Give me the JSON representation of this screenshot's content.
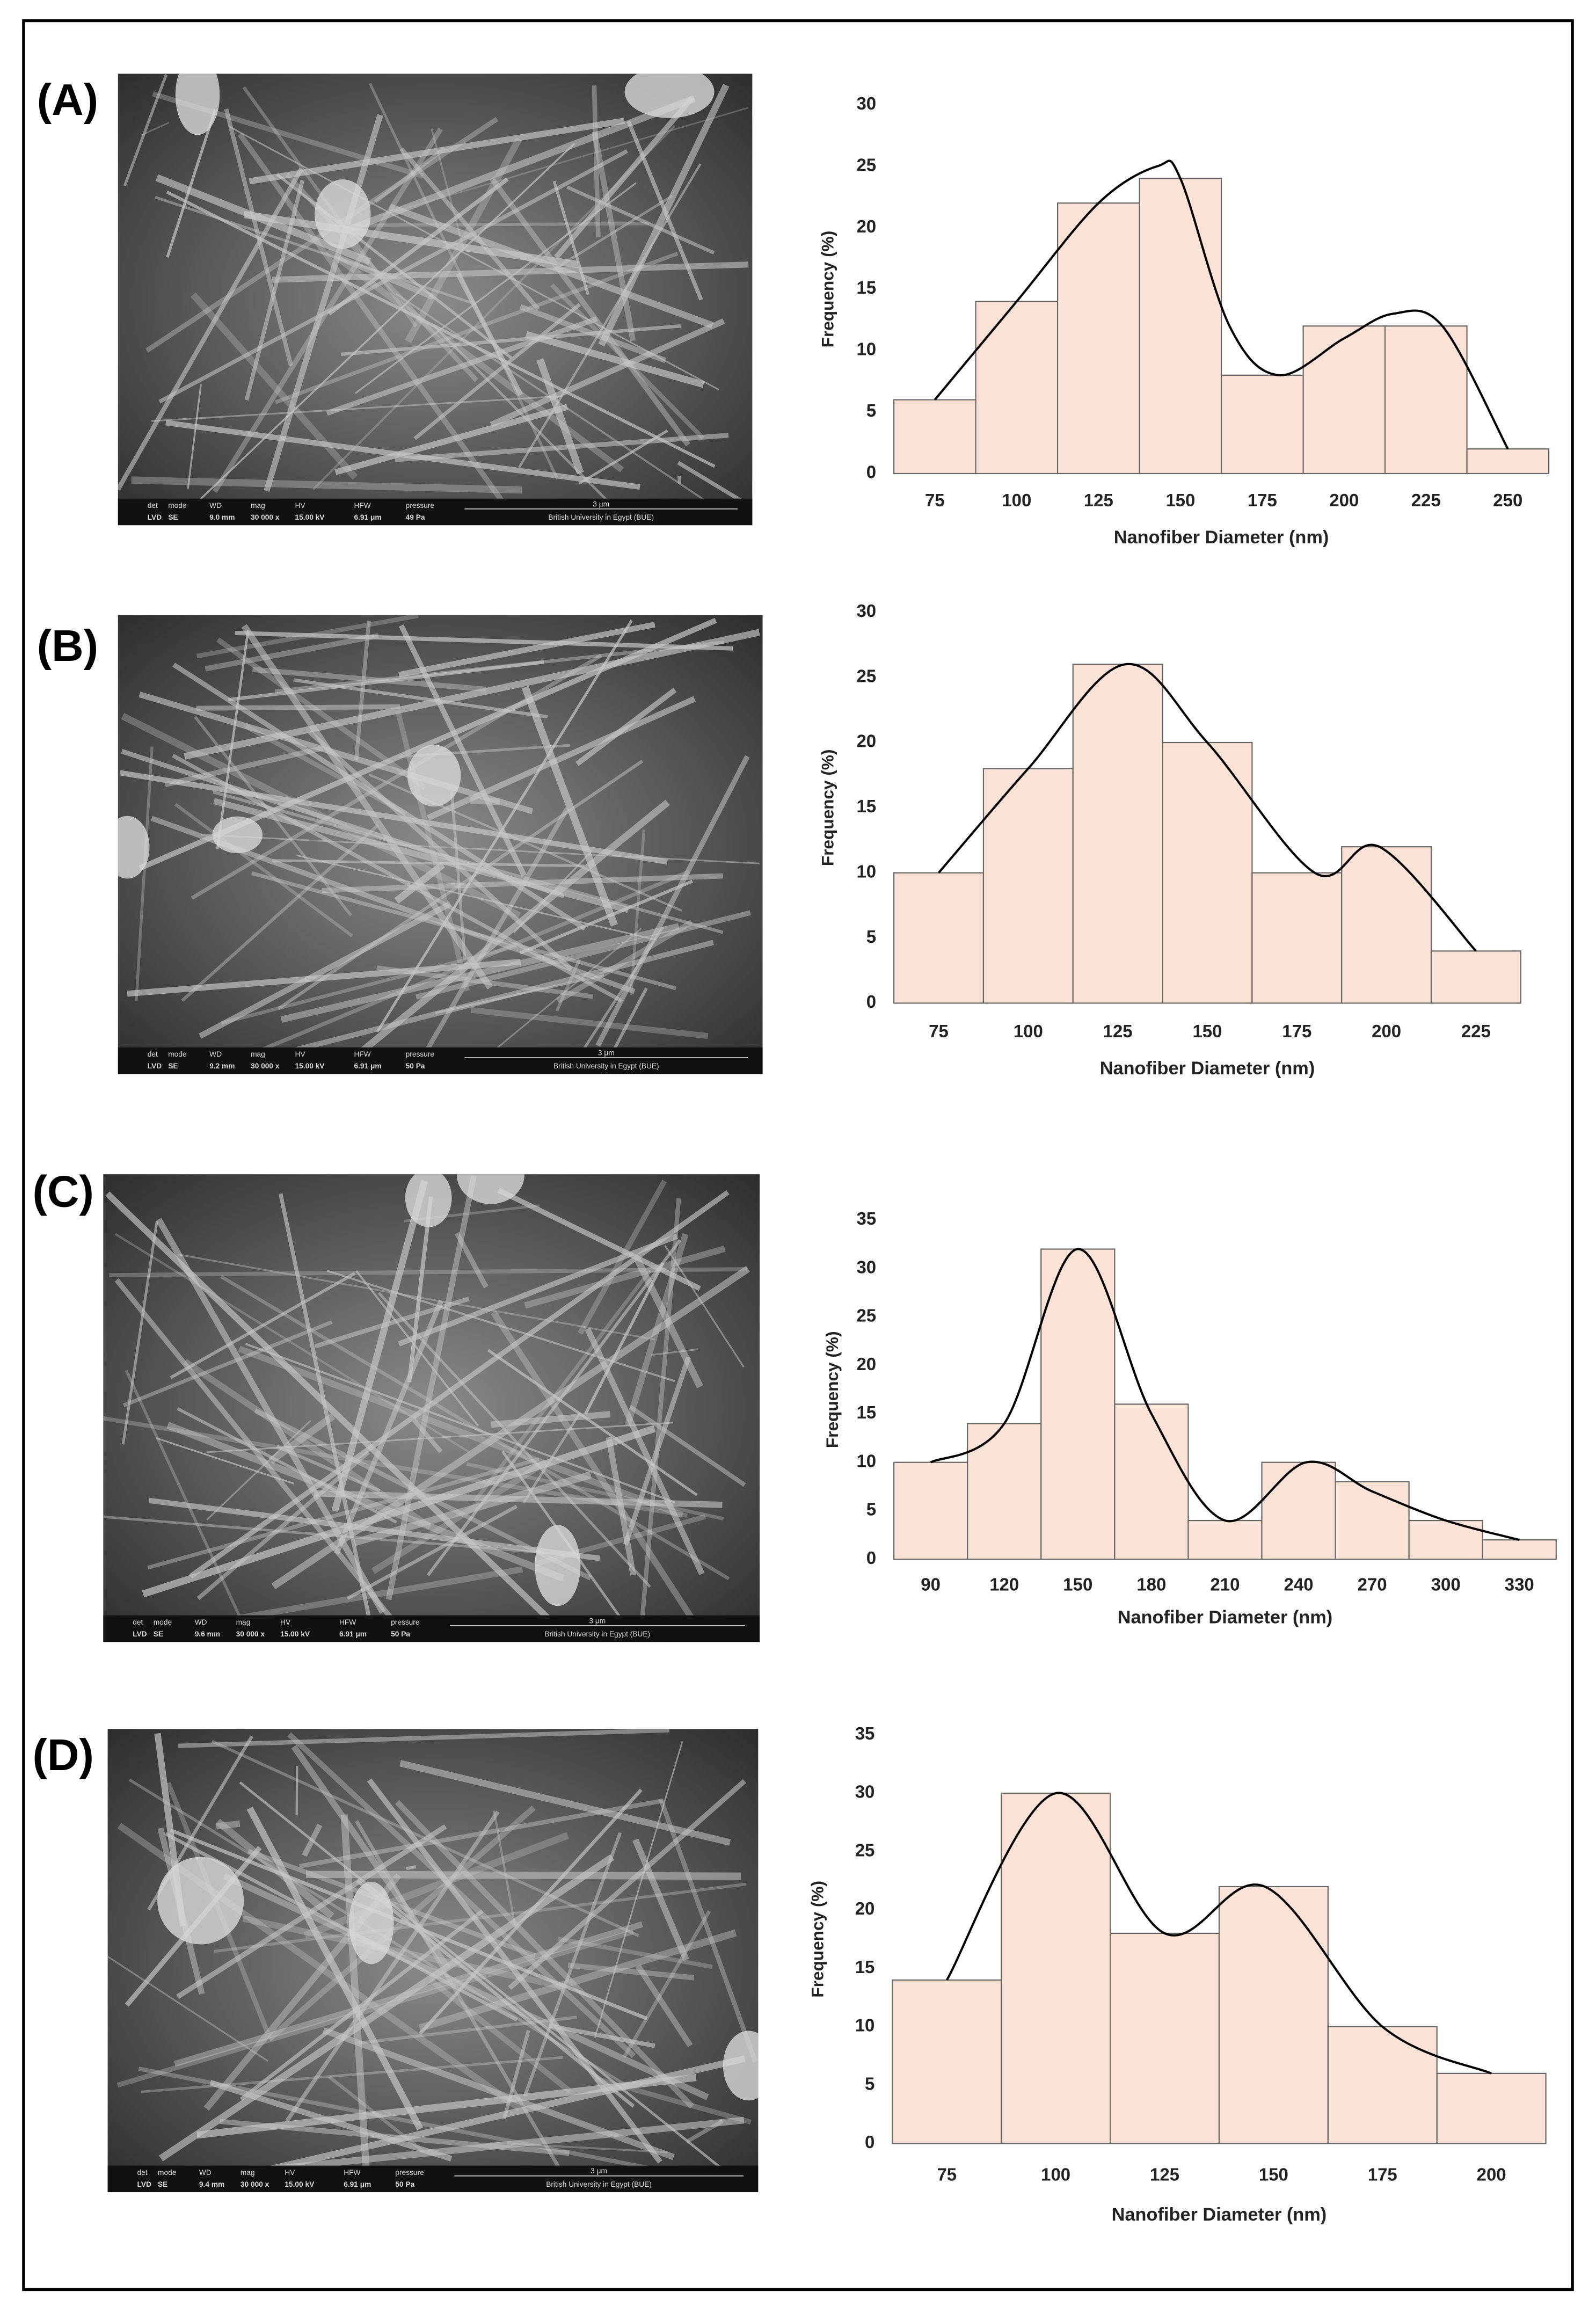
{
  "panels": [
    {
      "label": "(A)",
      "sem_bar": {
        "headers": [
          "det",
          "mode",
          "WD",
          "mag",
          "HV",
          "HFW",
          "pressure"
        ],
        "scale": "3 μm",
        "values": [
          "LVD",
          "SE",
          "9.0 mm",
          "30 000 x",
          "15.00 kV",
          "6.91 μm",
          "49 Pa"
        ],
        "institution": "British University in Egypt (BUE)"
      }
    },
    {
      "label": "(B)",
      "sem_bar": {
        "headers": [
          "det",
          "mode",
          "WD",
          "mag",
          "HV",
          "HFW",
          "pressure"
        ],
        "scale": "3 μm",
        "values": [
          "LVD",
          "SE",
          "9.2 mm",
          "30 000 x",
          "15.00 kV",
          "6.91 μm",
          "50 Pa"
        ],
        "institution": "British University in Egypt (BUE)"
      }
    },
    {
      "label": "(C)",
      "sem_bar": {
        "headers": [
          "det",
          "mode",
          "WD",
          "mag",
          "HV",
          "HFW",
          "pressure"
        ],
        "scale": "3 μm",
        "values": [
          "LVD",
          "SE",
          "9.6 mm",
          "30 000 x",
          "15.00 kV",
          "6.91 μm",
          "50 Pa"
        ],
        "institution": "British University in Egypt (BUE)"
      }
    },
    {
      "label": "(D)",
      "sem_bar": {
        "headers": [
          "det",
          "mode",
          "WD",
          "mag",
          "HV",
          "HFW",
          "pressure"
        ],
        "scale": "3 μm",
        "values": [
          "LVD",
          "SE",
          "9.4 mm",
          "30 000 x",
          "15.00 kV",
          "6.91 μm",
          "50 Pa"
        ],
        "institution": "British University in Egypt (BUE)"
      }
    }
  ],
  "chart_data": [
    {
      "type": "histogram",
      "xlabel": "Nanofiber Diameter (nm)",
      "ylabel": "Frequency (%)",
      "color": "#fae3d6",
      "bins": [
        62.5,
        87.5,
        112.5,
        137.5,
        162.5,
        187.5,
        212.5,
        237.5,
        262.5
      ],
      "counts": [
        6,
        14,
        22,
        24,
        8,
        12,
        12,
        2
      ],
      "curve": {
        "x": [
          75,
          100,
          125,
          143,
          150,
          165,
          180,
          200,
          215,
          230,
          250
        ],
        "values": [
          6,
          14,
          22,
          25,
          24,
          12,
          8,
          11,
          13,
          12,
          2
        ]
      },
      "xlim": [
        62.5,
        262.5
      ],
      "ylim": [
        0,
        30
      ],
      "xticks": [
        75,
        100,
        125,
        150,
        175,
        200,
        225,
        250
      ],
      "yticks": [
        0,
        5,
        10,
        15,
        20,
        25,
        30
      ]
    },
    {
      "type": "histogram",
      "xlabel": "Nanofiber Diameter (nm)",
      "ylabel": "Frequency (%)",
      "color": "#fae3d6",
      "bins": [
        62.5,
        87.5,
        112.5,
        137.5,
        162.5,
        187.5,
        212.5,
        237.5
      ],
      "counts": [
        10,
        18,
        26,
        20,
        10,
        12,
        4
      ],
      "curve": {
        "x": [
          75,
          100,
          127,
          150,
          180,
          198,
          225
        ],
        "values": [
          10,
          18,
          26,
          20,
          10,
          12,
          4
        ]
      },
      "xlim": [
        62.5,
        237.5
      ],
      "ylim": [
        0,
        30
      ],
      "xticks": [
        75,
        100,
        125,
        150,
        175,
        200,
        225
      ],
      "yticks": [
        0,
        5,
        10,
        15,
        20,
        25,
        30
      ]
    },
    {
      "type": "histogram",
      "xlabel": "Nanofiber Diameter (nm)",
      "ylabel": "Frequency (%)",
      "color": "#fae3d6",
      "bins": [
        75,
        105,
        135,
        165,
        195,
        225,
        255,
        285,
        315,
        345
      ],
      "counts": [
        10,
        14,
        32,
        16,
        4,
        10,
        8,
        4,
        2
      ],
      "curve": {
        "x": [
          90,
          120,
          150,
          180,
          210,
          243,
          270,
          300,
          330
        ],
        "values": [
          10,
          14,
          32,
          15,
          4,
          10,
          7,
          4,
          2
        ]
      },
      "xlim": [
        75,
        345
      ],
      "ylim": [
        0,
        35
      ],
      "xticks": [
        90,
        120,
        150,
        180,
        210,
        240,
        270,
        300,
        330
      ],
      "yticks": [
        0,
        5,
        10,
        15,
        20,
        25,
        30,
        35
      ]
    },
    {
      "type": "histogram",
      "xlabel": "Nanofiber Diameter (nm)",
      "ylabel": "Frequency (%)",
      "color": "#fae3d6",
      "bins": [
        62.5,
        87.5,
        112.5,
        137.5,
        162.5,
        187.5,
        212.5
      ],
      "counts": [
        14,
        30,
        18,
        22,
        10,
        6
      ],
      "curve": {
        "x": [
          75,
          100,
          125,
          148,
          175,
          200
        ],
        "values": [
          14,
          30,
          18,
          22,
          10,
          6
        ]
      },
      "xlim": [
        62.5,
        212.5
      ],
      "ylim": [
        0,
        35
      ],
      "xticks": [
        75,
        100,
        125,
        150,
        175,
        200
      ],
      "yticks": [
        0,
        5,
        10,
        15,
        20,
        25,
        30,
        35
      ]
    }
  ]
}
